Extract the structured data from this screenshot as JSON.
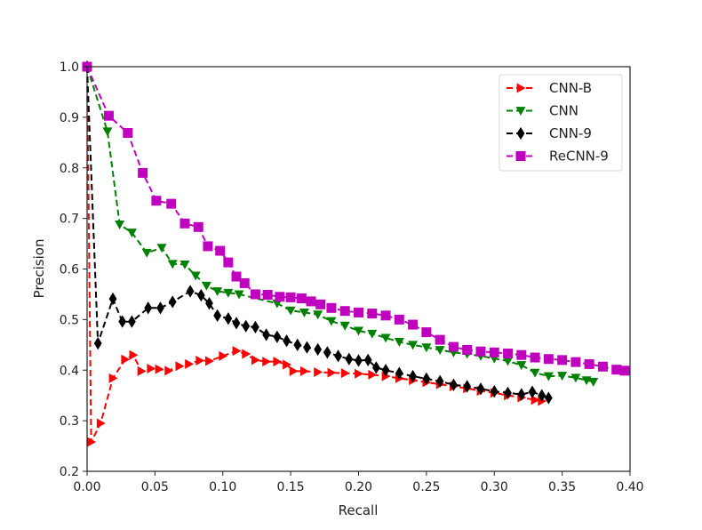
{
  "chart_data": {
    "type": "line",
    "title": "",
    "xlabel": "Recall",
    "ylabel": "Precision",
    "xlim": [
      0.0,
      0.4
    ],
    "ylim": [
      0.2,
      1.0
    ],
    "grid": false,
    "legend_position": "upper right",
    "x_ticks": [
      "0.00",
      "0.05",
      "0.10",
      "0.15",
      "0.20",
      "0.25",
      "0.30",
      "0.35",
      "0.40"
    ],
    "y_ticks": [
      "0.2",
      "0.3",
      "0.4",
      "0.5",
      "0.6",
      "0.7",
      "0.8",
      "0.9",
      "1.0"
    ],
    "series": [
      {
        "name": "CNN-B",
        "color": "#ff0000",
        "marker": "triangle-right",
        "linestyle": "dashed",
        "points": [
          [
            0.0,
            1.0
          ],
          [
            0.003,
            0.258
          ],
          [
            0.01,
            0.295
          ],
          [
            0.019,
            0.384
          ],
          [
            0.028,
            0.421
          ],
          [
            0.034,
            0.43
          ],
          [
            0.04,
            0.398
          ],
          [
            0.047,
            0.403
          ],
          [
            0.053,
            0.402
          ],
          [
            0.06,
            0.399
          ],
          [
            0.068,
            0.408
          ],
          [
            0.075,
            0.412
          ],
          [
            0.083,
            0.419
          ],
          [
            0.09,
            0.418
          ],
          [
            0.1,
            0.428
          ],
          [
            0.11,
            0.438
          ],
          [
            0.117,
            0.432
          ],
          [
            0.124,
            0.42
          ],
          [
            0.132,
            0.417
          ],
          [
            0.14,
            0.417
          ],
          [
            0.147,
            0.411
          ],
          [
            0.152,
            0.398
          ],
          [
            0.16,
            0.398
          ],
          [
            0.17,
            0.396
          ],
          [
            0.18,
            0.395
          ],
          [
            0.19,
            0.394
          ],
          [
            0.2,
            0.393
          ],
          [
            0.21,
            0.391
          ],
          [
            0.22,
            0.388
          ],
          [
            0.23,
            0.384
          ],
          [
            0.24,
            0.38
          ],
          [
            0.25,
            0.376
          ],
          [
            0.26,
            0.372
          ],
          [
            0.27,
            0.368
          ],
          [
            0.28,
            0.364
          ],
          [
            0.29,
            0.359
          ],
          [
            0.3,
            0.355
          ],
          [
            0.31,
            0.35
          ],
          [
            0.32,
            0.346
          ],
          [
            0.33,
            0.341
          ],
          [
            0.335,
            0.339
          ]
        ]
      },
      {
        "name": "CNN",
        "color": "#008000",
        "marker": "triangle-down",
        "linestyle": "dashed",
        "points": [
          [
            0.0,
            1.0
          ],
          [
            0.015,
            0.872
          ],
          [
            0.024,
            0.688
          ],
          [
            0.033,
            0.672
          ],
          [
            0.044,
            0.632
          ],
          [
            0.055,
            0.642
          ],
          [
            0.063,
            0.61
          ],
          [
            0.072,
            0.609
          ],
          [
            0.08,
            0.587
          ],
          [
            0.088,
            0.567
          ],
          [
            0.096,
            0.556
          ],
          [
            0.104,
            0.553
          ],
          [
            0.112,
            0.55
          ],
          [
            0.14,
            0.532
          ],
          [
            0.15,
            0.518
          ],
          [
            0.16,
            0.514
          ],
          [
            0.17,
            0.51
          ],
          [
            0.18,
            0.497
          ],
          [
            0.19,
            0.488
          ],
          [
            0.2,
            0.478
          ],
          [
            0.21,
            0.472
          ],
          [
            0.22,
            0.464
          ],
          [
            0.23,
            0.456
          ],
          [
            0.24,
            0.45
          ],
          [
            0.25,
            0.445
          ],
          [
            0.26,
            0.44
          ],
          [
            0.27,
            0.435
          ],
          [
            0.28,
            0.432
          ],
          [
            0.29,
            0.428
          ],
          [
            0.3,
            0.423
          ],
          [
            0.31,
            0.418
          ],
          [
            0.32,
            0.41
          ],
          [
            0.33,
            0.395
          ],
          [
            0.34,
            0.388
          ],
          [
            0.35,
            0.389
          ],
          [
            0.36,
            0.385
          ],
          [
            0.368,
            0.38
          ],
          [
            0.373,
            0.377
          ]
        ]
      },
      {
        "name": "CNN-9",
        "color": "#000000",
        "marker": "diamond",
        "linestyle": "dashed",
        "points": [
          [
            0.0,
            1.0
          ],
          [
            0.008,
            0.453
          ],
          [
            0.019,
            0.541
          ],
          [
            0.026,
            0.496
          ],
          [
            0.033,
            0.496
          ],
          [
            0.045,
            0.523
          ],
          [
            0.054,
            0.523
          ],
          [
            0.063,
            0.535
          ],
          [
            0.076,
            0.556
          ],
          [
            0.084,
            0.548
          ],
          [
            0.09,
            0.532
          ],
          [
            0.096,
            0.508
          ],
          [
            0.104,
            0.502
          ],
          [
            0.11,
            0.493
          ],
          [
            0.117,
            0.487
          ],
          [
            0.124,
            0.485
          ],
          [
            0.132,
            0.47
          ],
          [
            0.14,
            0.466
          ],
          [
            0.147,
            0.458
          ],
          [
            0.155,
            0.45
          ],
          [
            0.162,
            0.445
          ],
          [
            0.17,
            0.441
          ],
          [
            0.177,
            0.435
          ],
          [
            0.185,
            0.428
          ],
          [
            0.193,
            0.422
          ],
          [
            0.2,
            0.419
          ],
          [
            0.207,
            0.42
          ],
          [
            0.213,
            0.405
          ],
          [
            0.22,
            0.4
          ],
          [
            0.23,
            0.394
          ],
          [
            0.24,
            0.388
          ],
          [
            0.25,
            0.383
          ],
          [
            0.26,
            0.378
          ],
          [
            0.27,
            0.371
          ],
          [
            0.28,
            0.368
          ],
          [
            0.29,
            0.363
          ],
          [
            0.3,
            0.358
          ],
          [
            0.31,
            0.355
          ],
          [
            0.32,
            0.352
          ],
          [
            0.328,
            0.357
          ],
          [
            0.335,
            0.35
          ],
          [
            0.34,
            0.345
          ]
        ]
      },
      {
        "name": "ReCNN-9",
        "color": "#bf00bf",
        "marker": "square",
        "linestyle": "dashed",
        "points": [
          [
            0.0,
            1.0
          ],
          [
            0.016,
            0.903
          ],
          [
            0.03,
            0.869
          ],
          [
            0.041,
            0.79
          ],
          [
            0.051,
            0.735
          ],
          [
            0.062,
            0.729
          ],
          [
            0.072,
            0.69
          ],
          [
            0.082,
            0.683
          ],
          [
            0.089,
            0.645
          ],
          [
            0.098,
            0.636
          ],
          [
            0.104,
            0.613
          ],
          [
            0.11,
            0.585
          ],
          [
            0.116,
            0.572
          ],
          [
            0.124,
            0.55
          ],
          [
            0.133,
            0.549
          ],
          [
            0.142,
            0.545
          ],
          [
            0.15,
            0.544
          ],
          [
            0.158,
            0.542
          ],
          [
            0.165,
            0.536
          ],
          [
            0.172,
            0.53
          ],
          [
            0.18,
            0.523
          ],
          [
            0.19,
            0.517
          ],
          [
            0.2,
            0.514
          ],
          [
            0.21,
            0.512
          ],
          [
            0.22,
            0.508
          ],
          [
            0.23,
            0.5
          ],
          [
            0.24,
            0.49
          ],
          [
            0.25,
            0.475
          ],
          [
            0.26,
            0.46
          ],
          [
            0.27,
            0.446
          ],
          [
            0.28,
            0.44
          ],
          [
            0.29,
            0.437
          ],
          [
            0.3,
            0.435
          ],
          [
            0.31,
            0.433
          ],
          [
            0.32,
            0.43
          ],
          [
            0.33,
            0.425
          ],
          [
            0.34,
            0.422
          ],
          [
            0.35,
            0.42
          ],
          [
            0.36,
            0.416
          ],
          [
            0.37,
            0.412
          ],
          [
            0.38,
            0.407
          ],
          [
            0.39,
            0.401
          ],
          [
            0.396,
            0.399
          ]
        ]
      }
    ]
  }
}
